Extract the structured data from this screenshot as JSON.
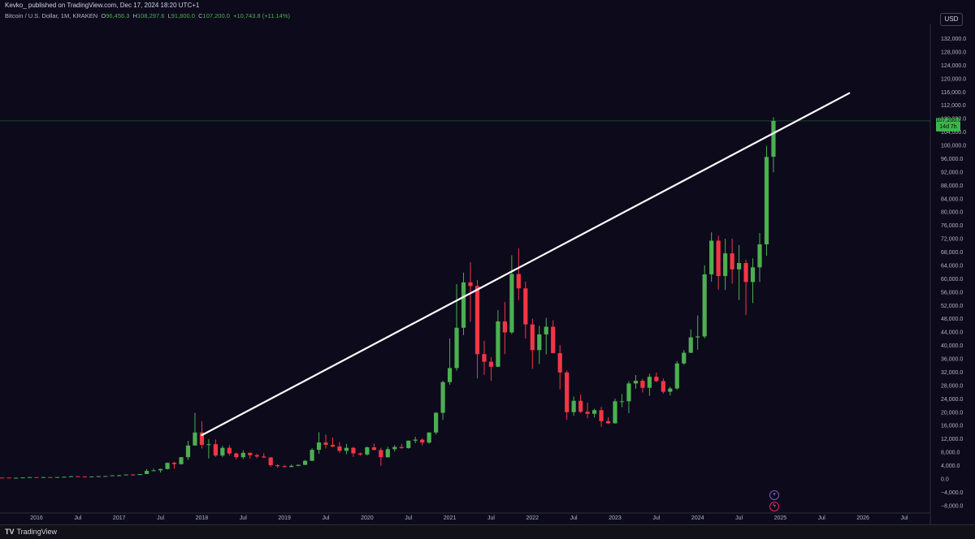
{
  "header": {
    "publisher": "Kevko_ published on TradingView.com, Dec 17, 2024 18:20 UTC+1"
  },
  "symbol": {
    "name": "Bitcoin / U.S. Dollar, 1M, KRAKEN",
    "open_label": "O",
    "open": "96,456.3",
    "high_label": "H",
    "high": "108,297.6",
    "low_label": "L",
    "low": "91,800.0",
    "close_label": "C",
    "close": "107,200.0",
    "change": "+10,743.8 (+11.14%)"
  },
  "currency_button": "USD",
  "last_price": {
    "value": "107,200.0",
    "countdown": "14d 7h"
  },
  "footer": {
    "logo_mark": "TV",
    "logo_text": "TradingView"
  },
  "colors": {
    "background": "#0d0a1c",
    "up": "#4caf50",
    "down": "#f23645",
    "trendline": "#ffffff",
    "axis_text": "#b2b5be"
  },
  "icons": [
    "plus-circle-icon",
    "lightning-circle-icon"
  ],
  "chart_data": {
    "type": "candlestick",
    "interval": "1M",
    "y_axis_side": "right",
    "yticks": [
      -8000,
      -4000,
      0,
      4000,
      8000,
      12000,
      16000,
      20000,
      24000,
      28000,
      32000,
      36000,
      40000,
      44000,
      48000,
      52000,
      56000,
      60000,
      64000,
      68000,
      72000,
      76000,
      80000,
      84000,
      88000,
      92000,
      96000,
      100000,
      104000,
      108000,
      112000,
      116000,
      120000,
      124000,
      128000,
      132000
    ],
    "ytick_labels": [
      "−8,000.0",
      "−4,000.0",
      "0.0",
      "4,000.0",
      "8,000.0",
      "12,000.0",
      "16,000.0",
      "20,000.0",
      "24,000.0",
      "28,000.0",
      "32,000.0",
      "36,000.0",
      "40,000.0",
      "44,000.0",
      "48,000.0",
      "52,000.0",
      "56,000.0",
      "60,000.0",
      "64,000.0",
      "68,000.0",
      "72,000.0",
      "76,000.0",
      "80,000.0",
      "84,000.0",
      "88,000.0",
      "92,000.0",
      "96,000.0",
      "100,000.0",
      "104,000.0",
      "108,000.0",
      "112,000.0",
      "116,000.0",
      "120,000.0",
      "124,000.0",
      "128,000.0",
      "132,000.0"
    ],
    "ylim": [
      -10000,
      136000
    ],
    "xticks": [
      {
        "label": "2016",
        "month": 0
      },
      {
        "label": "Jul",
        "month": 6
      },
      {
        "label": "2017",
        "month": 12
      },
      {
        "label": "Jul",
        "month": 18
      },
      {
        "label": "2018",
        "month": 24
      },
      {
        "label": "Jul",
        "month": 30
      },
      {
        "label": "2019",
        "month": 36
      },
      {
        "label": "Jul",
        "month": 42
      },
      {
        "label": "2020",
        "month": 48
      },
      {
        "label": "Jul",
        "month": 54
      },
      {
        "label": "2021",
        "month": 60
      },
      {
        "label": "Jul",
        "month": 66
      },
      {
        "label": "2022",
        "month": 72
      },
      {
        "label": "Jul",
        "month": 78
      },
      {
        "label": "2023",
        "month": 84
      },
      {
        "label": "Jul",
        "month": 90
      },
      {
        "label": "2024",
        "month": 96
      },
      {
        "label": "Jul",
        "month": 102
      },
      {
        "label": "2025",
        "month": 108
      },
      {
        "label": "Jul",
        "month": 114
      },
      {
        "label": "2026",
        "month": 120
      },
      {
        "label": "Jul",
        "month": 126
      }
    ],
    "first_candle_month": -12,
    "candles": [
      [
        310,
        320,
        260,
        280
      ],
      [
        280,
        285,
        220,
        250
      ],
      [
        250,
        300,
        240,
        245
      ],
      [
        245,
        260,
        220,
        235
      ],
      [
        235,
        250,
        220,
        230
      ],
      [
        230,
        265,
        225,
        250
      ],
      [
        250,
        330,
        235,
        285
      ],
      [
        285,
        300,
        260,
        280
      ],
      [
        280,
        280,
        220,
        235
      ],
      [
        235,
        245,
        225,
        240
      ],
      [
        240,
        340,
        235,
        320
      ],
      [
        320,
        460,
        300,
        430
      ],
      [
        430,
        440,
        350,
        370
      ],
      [
        370,
        440,
        360,
        430
      ],
      [
        430,
        440,
        390,
        420
      ],
      [
        420,
        470,
        410,
        450
      ],
      [
        450,
        550,
        440,
        530
      ],
      [
        530,
        780,
        520,
        670
      ],
      [
        670,
        700,
        620,
        625
      ],
      [
        625,
        620,
        460,
        575
      ],
      [
        575,
        620,
        570,
        610
      ],
      [
        610,
        720,
        600,
        700
      ],
      [
        700,
        750,
        700,
        740
      ],
      [
        740,
        980,
        740,
        960
      ],
      [
        960,
        1100,
        760,
        960
      ],
      [
        960,
        1200,
        940,
        1200
      ],
      [
        1200,
        1300,
        900,
        1070
      ],
      [
        1070,
        1350,
        1070,
        1350
      ],
      [
        1350,
        2800,
        1350,
        2300
      ],
      [
        2300,
        2950,
        2300,
        2450
      ],
      [
        2450,
        2950,
        1800,
        2850
      ],
      [
        2850,
        4800,
        2700,
        4700
      ],
      [
        4700,
        5000,
        2900,
        4300
      ],
      [
        4300,
        6400,
        4200,
        6400
      ],
      [
        6400,
        11300,
        5600,
        9900
      ],
      [
        9900,
        19700,
        9900,
        13800
      ],
      [
        13800,
        17200,
        9000,
        10100
      ],
      [
        10100,
        11800,
        6000,
        10300
      ],
      [
        10300,
        11700,
        6500,
        6900
      ],
      [
        6900,
        9800,
        6400,
        9200
      ],
      [
        9200,
        10000,
        6900,
        7500
      ],
      [
        7500,
        7800,
        5800,
        6400
      ],
      [
        6400,
        8500,
        5900,
        7700
      ],
      [
        7700,
        7800,
        5900,
        7000
      ],
      [
        7000,
        7400,
        6100,
        6600
      ],
      [
        6600,
        7600,
        6200,
        6300
      ],
      [
        6300,
        6500,
        3500,
        4000
      ],
      [
        4000,
        4300,
        3150,
        3700
      ],
      [
        3700,
        4100,
        3350,
        3450
      ],
      [
        3450,
        4200,
        3400,
        3800
      ],
      [
        3800,
        4200,
        3700,
        4100
      ],
      [
        4100,
        5600,
        4000,
        5300
      ],
      [
        5300,
        9100,
        5300,
        8600
      ],
      [
        8600,
        13900,
        7400,
        10800
      ],
      [
        10800,
        13200,
        9000,
        10100
      ],
      [
        10100,
        12300,
        9400,
        9600
      ],
      [
        9600,
        10900,
        7700,
        8300
      ],
      [
        8300,
        10400,
        7300,
        9200
      ],
      [
        9200,
        9500,
        6500,
        7550
      ],
      [
        7550,
        7750,
        6850,
        7200
      ],
      [
        7200,
        9600,
        6900,
        9350
      ],
      [
        9350,
        10500,
        8500,
        8550
      ],
      [
        8550,
        9200,
        3800,
        6400
      ],
      [
        6400,
        9500,
        6200,
        8800
      ],
      [
        8800,
        10000,
        8100,
        9450
      ],
      [
        9450,
        10400,
        8900,
        9150
      ],
      [
        9150,
        11400,
        8950,
        11350
      ],
      [
        11350,
        12500,
        10600,
        11650
      ],
      [
        11650,
        12100,
        9900,
        10780
      ],
      [
        10780,
        13900,
        10400,
        13800
      ],
      [
        13800,
        19900,
        13200,
        19700
      ],
      [
        19700,
        29300,
        17600,
        28900
      ],
      [
        28900,
        42000,
        28100,
        33100
      ],
      [
        33100,
        58300,
        32300,
        45200
      ],
      [
        45200,
        61700,
        43000,
        58800
      ],
      [
        58800,
        64800,
        47000,
        57700
      ],
      [
        57700,
        59500,
        30000,
        37300
      ],
      [
        37300,
        41300,
        31100,
        35000
      ],
      [
        35000,
        36400,
        29300,
        33500
      ],
      [
        33500,
        50500,
        33400,
        47100
      ],
      [
        47100,
        52900,
        37300,
        43800
      ],
      [
        43800,
        66900,
        43300,
        61300
      ],
      [
        61300,
        69000,
        53500,
        57000
      ],
      [
        57000,
        59000,
        42000,
        46200
      ],
      [
        46200,
        47900,
        32900,
        38500
      ],
      [
        38500,
        45800,
        34300,
        43200
      ],
      [
        43200,
        48200,
        37200,
        45500
      ],
      [
        45500,
        47400,
        37700,
        37600
      ],
      [
        37600,
        40000,
        26700,
        31800
      ],
      [
        31800,
        32400,
        17600,
        19900
      ],
      [
        19900,
        24600,
        18800,
        23300
      ],
      [
        23300,
        25200,
        19600,
        20000
      ],
      [
        20000,
        22800,
        18100,
        19400
      ],
      [
        19400,
        20900,
        18300,
        20500
      ],
      [
        20500,
        21500,
        15500,
        17200
      ],
      [
        17200,
        18400,
        16300,
        16550
      ],
      [
        16550,
        23900,
        16500,
        23150
      ],
      [
        23150,
        25300,
        21400,
        23150
      ],
      [
        23150,
        29200,
        19600,
        28500
      ],
      [
        28500,
        31000,
        26900,
        29300
      ],
      [
        29300,
        29900,
        25800,
        27200
      ],
      [
        27200,
        31400,
        24800,
        30500
      ],
      [
        30500,
        31800,
        28900,
        29200
      ],
      [
        29200,
        30000,
        25400,
        26000
      ],
      [
        26000,
        27500,
        24900,
        27000
      ],
      [
        27000,
        35200,
        26600,
        34500
      ],
      [
        34500,
        38500,
        34100,
        37700
      ],
      [
        37700,
        44700,
        37600,
        42300
      ],
      [
        42300,
        48900,
        38600,
        42600
      ],
      [
        42600,
        63900,
        42000,
        61200
      ],
      [
        61200,
        73800,
        59000,
        71300
      ],
      [
        71300,
        72800,
        56600,
        60700
      ],
      [
        60700,
        71900,
        56500,
        67500
      ],
      [
        67500,
        71900,
        58400,
        62700
      ],
      [
        62700,
        70000,
        53500,
        64600
      ],
      [
        64600,
        65600,
        49000,
        58900
      ],
      [
        58900,
        66000,
        52600,
        63300
      ],
      [
        63300,
        73600,
        58900,
        70200
      ],
      [
        70200,
        99700,
        66800,
        96400
      ],
      [
        96450,
        108300,
        91800,
        107200
      ]
    ],
    "trendline": {
      "start": {
        "month": 24,
        "price": 13000
      },
      "end": {
        "month": 118,
        "price": 115500
      }
    },
    "last_price_value": 107200
  }
}
